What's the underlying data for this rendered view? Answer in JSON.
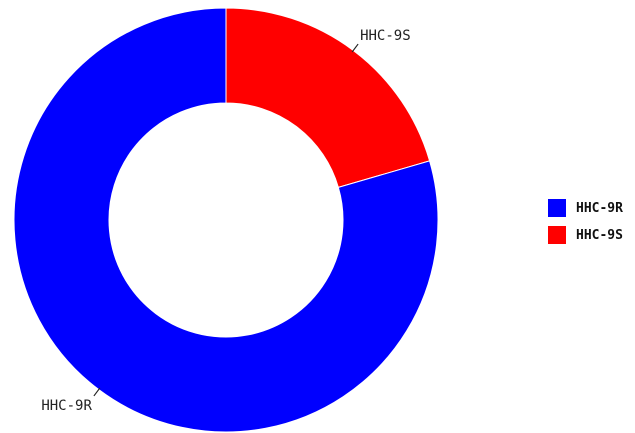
{
  "chart_data": {
    "type": "pie",
    "donut": true,
    "slices": [
      {
        "label": "HHC-9S",
        "value": 20.5,
        "color": "#ff0000"
      },
      {
        "label": "HHC-9R",
        "value": 79.5,
        "color": "#0000ff"
      }
    ],
    "legend": {
      "position": "right",
      "entries": [
        {
          "label": "HHC-9R",
          "color": "#0000ff"
        },
        {
          "label": "HHC-9S",
          "color": "#ff0000"
        }
      ]
    }
  }
}
